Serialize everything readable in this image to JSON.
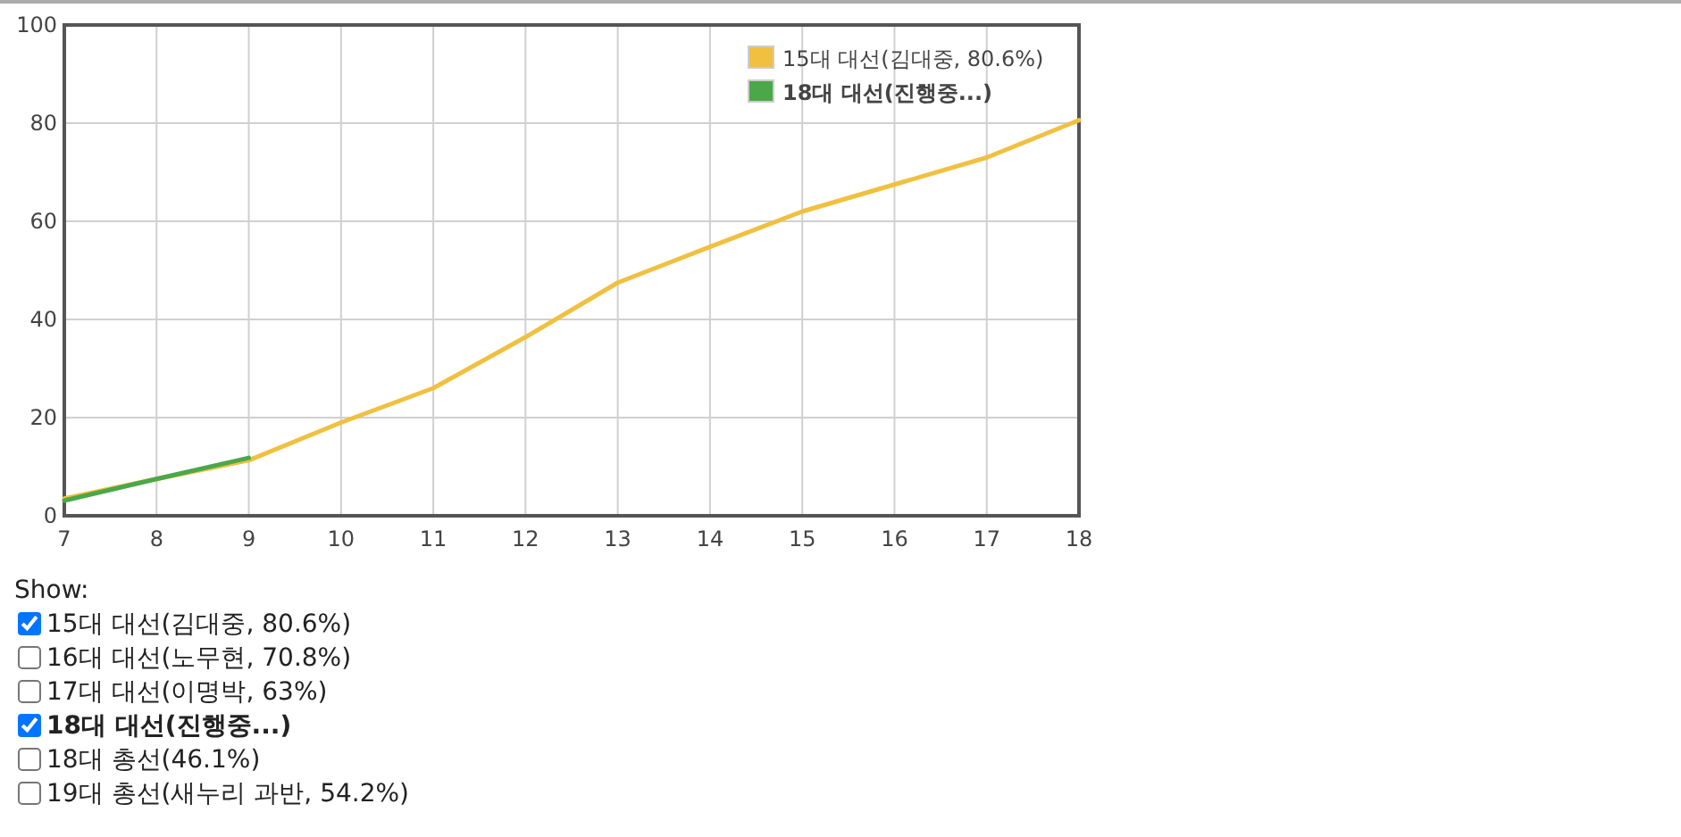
{
  "chart_data": {
    "type": "line",
    "x": [
      7,
      8,
      9,
      10,
      11,
      12,
      13,
      14,
      15,
      16,
      17,
      18
    ],
    "xlim": [
      7,
      18
    ],
    "xticks": [
      7,
      8,
      9,
      10,
      11,
      12,
      13,
      14,
      15,
      16,
      17,
      18
    ],
    "ylim": [
      0,
      100
    ],
    "yticks": [
      0,
      20,
      40,
      60,
      80,
      100
    ],
    "grid": true,
    "legend": "top right",
    "annotations": [
      "Show:"
    ],
    "series": [
      {
        "name": "15대 대선(김대중, 80.6%)",
        "color": "#f0c040",
        "values": [
          3.5,
          7.5,
          11.3,
          19,
          26,
          36.4,
          47.5,
          54.8,
          62,
          67.5,
          73,
          80.6
        ]
      },
      {
        "name": "16대 대선(노무현, 70.8%)",
        "values": [
          null,
          null,
          null,
          null,
          null,
          null,
          null,
          null,
          null,
          null,
          null,
          null
        ]
      },
      {
        "name": "17대 대선(이명박, 63%)",
        "values": [
          null,
          null,
          null,
          null,
          null,
          null,
          null,
          null,
          null,
          null,
          null,
          null
        ]
      },
      {
        "name": "18대 대선(진행중...)",
        "color": "#4aa84a",
        "values": [
          3.1,
          7.5,
          11.8,
          null,
          null,
          null,
          null,
          null,
          null,
          null,
          null,
          null
        ]
      },
      {
        "name": "18대 총선(46.1%)",
        "values": [
          null,
          null,
          null,
          null,
          null,
          null,
          null,
          null,
          null,
          null,
          null,
          null
        ]
      },
      {
        "name": "19대 총선(새누리 과반, 54.2%)",
        "values": [
          null,
          null,
          null,
          null,
          null,
          null,
          null,
          null,
          null,
          null,
          null,
          null
        ]
      }
    ]
  }
}
